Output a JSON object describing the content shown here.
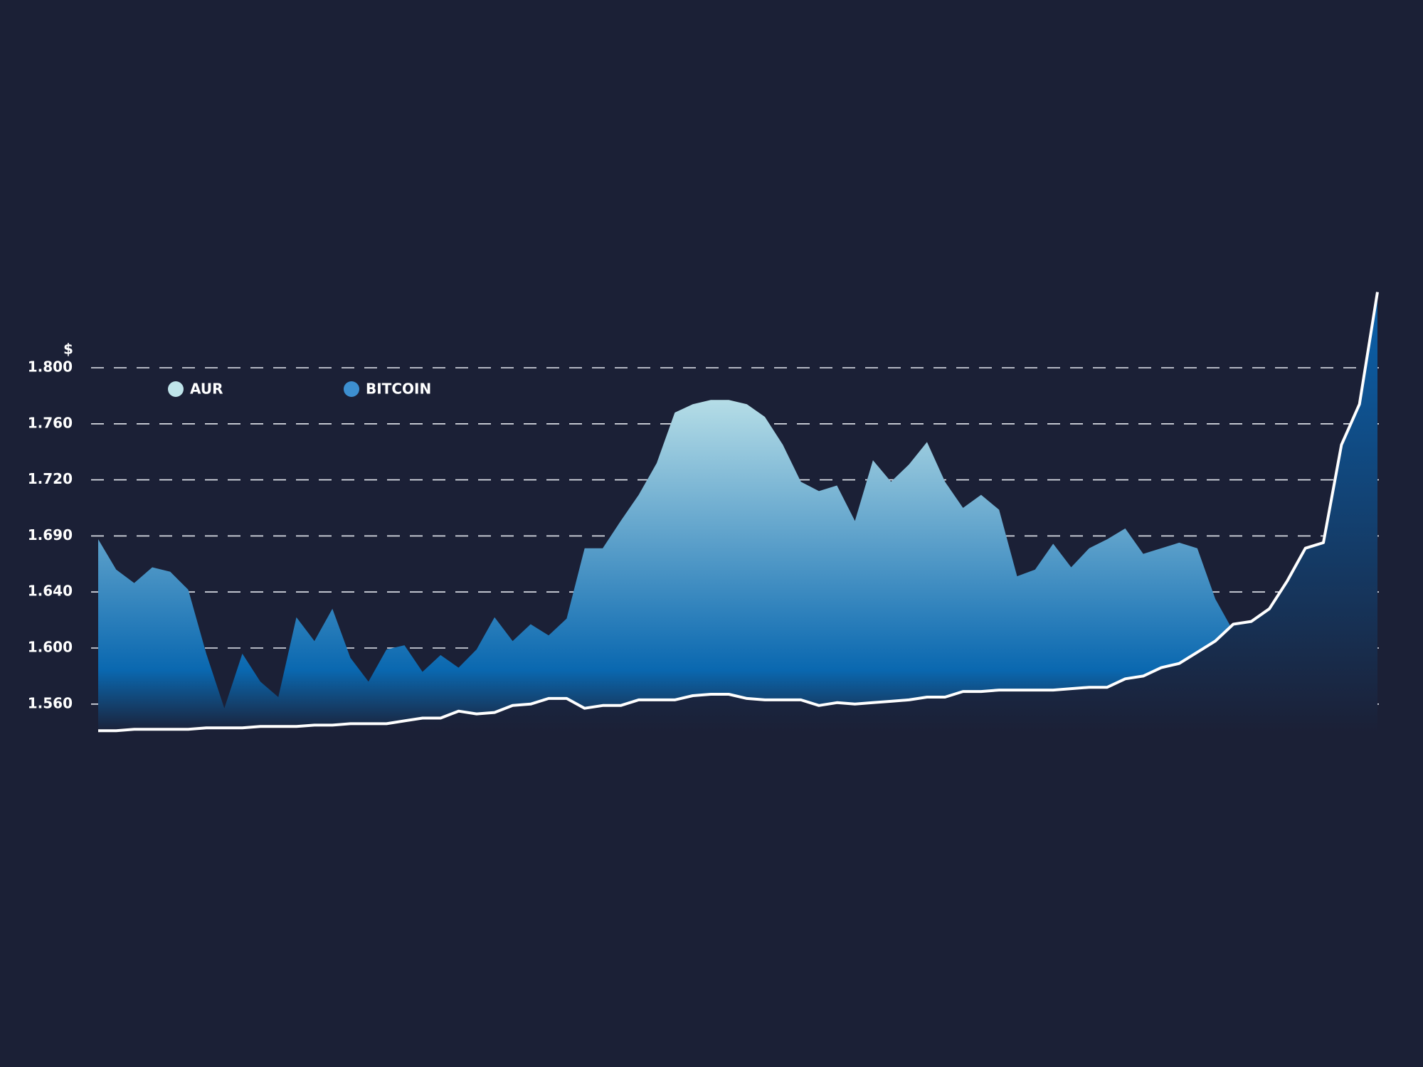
{
  "chart_data": {
    "type": "area",
    "ylabel": "$",
    "ylim": [
      1.54,
      1.86
    ],
    "yticks": [
      {
        "value": 1.56,
        "label": "1.560"
      },
      {
        "value": 1.6,
        "label": "1.600"
      },
      {
        "value": 1.64,
        "label": "1.640"
      },
      {
        "value": 1.69,
        "label": "1.690"
      },
      {
        "value": 1.72,
        "label": "1.720"
      },
      {
        "value": 1.76,
        "label": "1.760"
      },
      {
        "value": 1.8,
        "label": "1.800"
      }
    ],
    "grid": true,
    "series": [
      {
        "name": "AUR",
        "color": "#bfe4ea",
        "values": [
          1.687,
          1.66,
          1.648,
          1.662,
          1.658,
          1.642,
          1.596,
          1.557,
          1.596,
          1.576,
          1.565,
          1.622,
          1.605,
          1.628,
          1.593,
          1.576,
          1.599,
          1.602,
          1.583,
          1.595,
          1.586,
          1.599,
          1.622,
          1.605,
          1.617,
          1.609,
          1.621,
          1.679,
          1.679,
          1.698,
          1.712,
          1.732,
          1.768,
          1.774,
          1.777,
          1.777,
          1.774,
          1.765,
          1.745,
          1.719,
          1.714,
          1.717,
          1.698,
          1.734,
          1.719,
          1.731,
          1.747,
          1.719,
          1.705,
          1.712,
          1.704,
          1.654,
          1.66,
          1.683,
          1.662,
          1.679,
          1.687,
          1.694,
          1.674,
          1.679,
          1.684,
          1.679,
          1.635,
          1.612,
          null,
          null,
          null,
          null,
          null,
          null,
          null,
          null
        ]
      },
      {
        "name": "BITCOIN",
        "color": "#3d8fd0",
        "values": [
          1.541,
          1.541,
          1.542,
          1.542,
          1.542,
          1.542,
          1.543,
          1.543,
          1.543,
          1.544,
          1.544,
          1.544,
          1.545,
          1.545,
          1.546,
          1.546,
          1.546,
          1.548,
          1.55,
          1.55,
          1.555,
          1.553,
          1.554,
          1.559,
          1.56,
          1.564,
          1.564,
          1.557,
          1.559,
          1.559,
          1.563,
          1.563,
          1.563,
          1.566,
          1.567,
          1.567,
          1.564,
          1.563,
          1.563,
          1.563,
          1.559,
          1.561,
          1.56,
          1.561,
          1.562,
          1.563,
          1.565,
          1.565,
          1.569,
          1.569,
          1.57,
          1.57,
          1.57,
          1.57,
          1.571,
          1.572,
          1.572,
          1.578,
          1.58,
          1.586,
          1.589,
          1.597,
          1.605,
          1.617,
          1.619,
          1.628,
          1.65,
          1.679,
          1.684,
          1.745,
          1.774,
          1.854
        ]
      }
    ]
  }
}
